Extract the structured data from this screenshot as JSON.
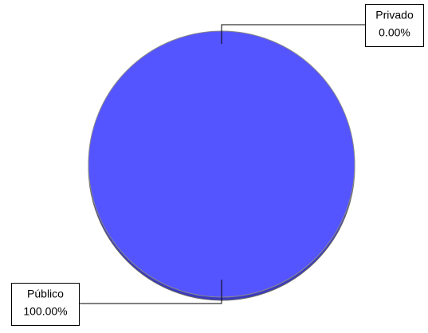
{
  "chart_data": {
    "type": "pie",
    "categories": [
      "Privado",
      "Público"
    ],
    "values": [
      0,
      100
    ],
    "value_labels": [
      "0.00%",
      "100.00%"
    ],
    "colors": [
      "#5a5aff",
      "#5555ff"
    ]
  }
}
